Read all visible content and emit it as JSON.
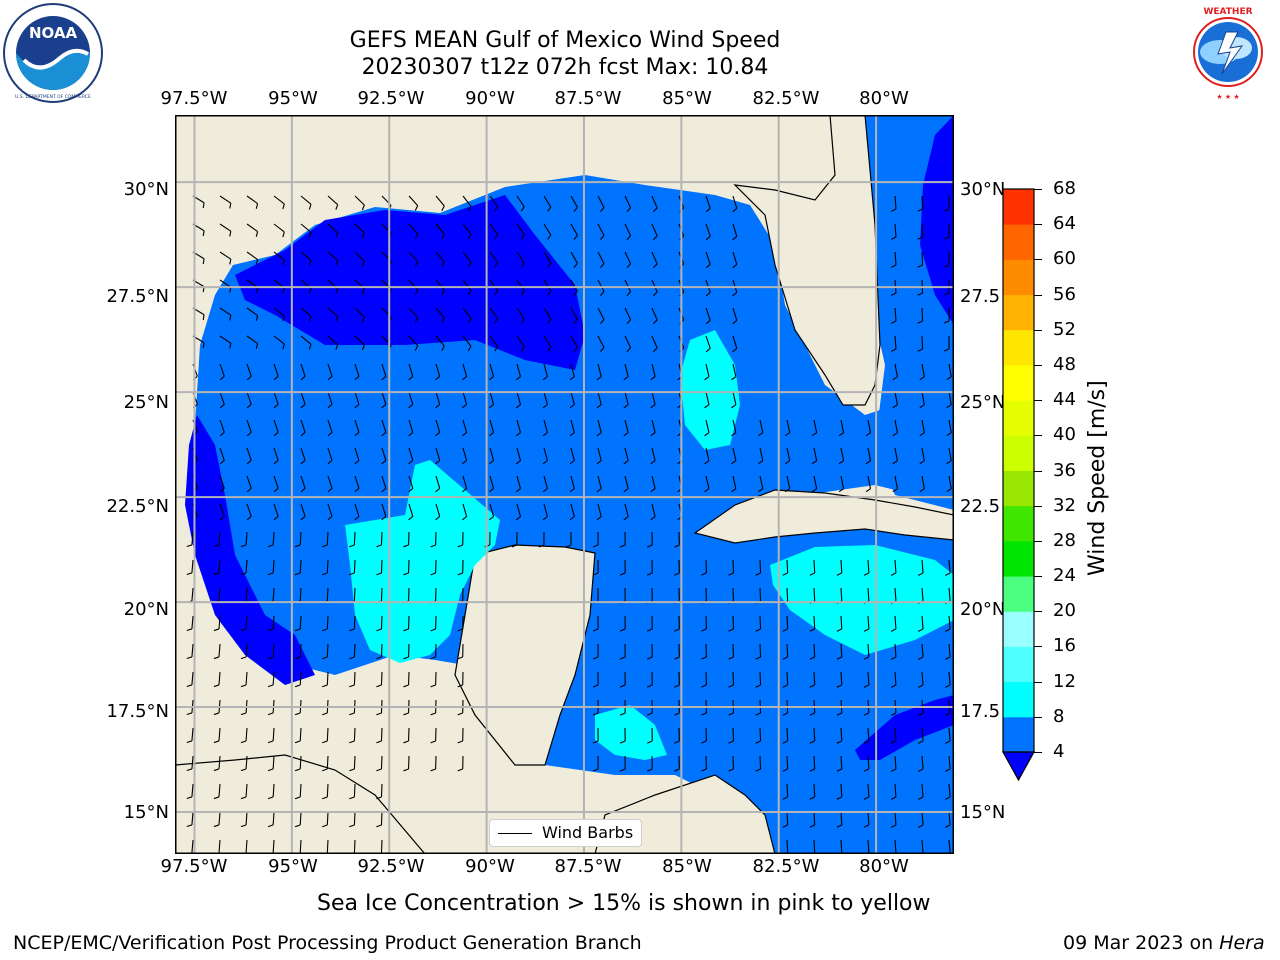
{
  "header": {
    "title_line1": "GEFS MEAN Gulf of Mexico Wind Speed",
    "title_line2": "20230307 t12z 072h fcst   Max: 10.84"
  },
  "logos": {
    "left": {
      "icon": "noaa-logo-icon",
      "text": "NOAA",
      "ring_text": "NATIONAL OCEANIC AND ATMOSPHERIC ADMINISTRATION · U.S. DEPARTMENT OF COMMERCE"
    },
    "right": {
      "icon": "nws-logo-icon",
      "ring_text": "NATIONAL WEATHER SERVICE"
    }
  },
  "map": {
    "lon_range": [
      -98.0,
      -78.0
    ],
    "lat_range": [
      14.0,
      31.6
    ],
    "lon_ticks": [
      "97.5°W",
      "95°W",
      "92.5°W",
      "90°W",
      "87.5°W",
      "85°W",
      "82.5°W",
      "80°W"
    ],
    "lat_ticks_left": [
      "30°N",
      "27.5°N",
      "25°N",
      "22.5°N",
      "20°N",
      "17.5°N",
      "15°N"
    ],
    "lat_ticks_right": [
      "30°N",
      "27.5",
      "25°N",
      "22.5",
      "20°N",
      "17.5",
      "15°N"
    ],
    "land_color": "#efecdc",
    "gridlines": true,
    "legend": {
      "label": "Wind Barbs",
      "placement": "bottom-center"
    }
  },
  "colorbar": {
    "label": "Wind Speed [m/s]",
    "ticks": [
      "68",
      "64",
      "60",
      "56",
      "52",
      "48",
      "44",
      "40",
      "36",
      "32",
      "28",
      "24",
      "20",
      "16",
      "12",
      "8",
      "4"
    ],
    "colors_low_to_high": [
      "#0073ff",
      "#00ffff",
      "#4dffff",
      "#99ffff",
      "#4dff80",
      "#00e600",
      "#40e600",
      "#99e600",
      "#ccff00",
      "#e6ff00",
      "#ffff00",
      "#ffe600",
      "#ffb300",
      "#ff8c00",
      "#ff6600",
      "#ff3300",
      "#ff0000"
    ],
    "under_color": "#0000ff"
  },
  "footer": {
    "note": "Sea Ice Concentration > 15% is shown in pink to yellow",
    "credit": "NCEP/EMC/Verification Post Processing Product Generation Branch",
    "date_prefix": "09 Mar 2023 on ",
    "host": "Hera"
  }
}
